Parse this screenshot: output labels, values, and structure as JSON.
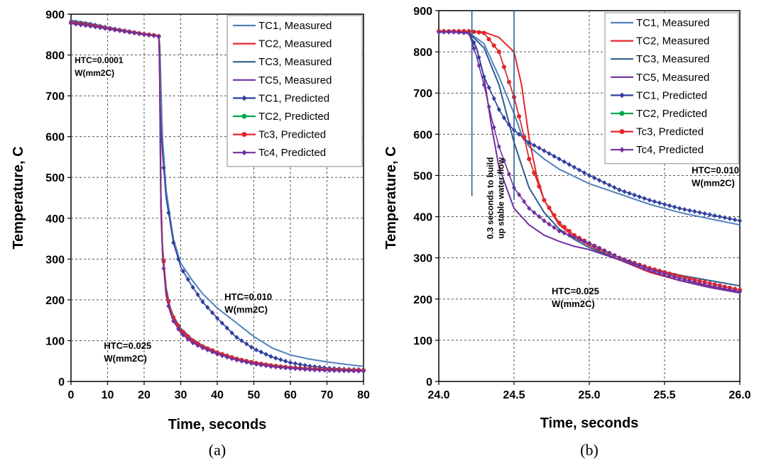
{
  "chart_data": [
    {
      "type": "line",
      "xlabel": "Time, seconds",
      "ylabel": "Temperature, C",
      "xlim": [
        0,
        80
      ],
      "ylim": [
        0,
        900
      ],
      "xticks": [
        "0",
        "10",
        "20",
        "30",
        "40",
        "50",
        "60",
        "70",
        "80"
      ],
      "yticks": [
        "0",
        "100",
        "200",
        "300",
        "400",
        "500",
        "600",
        "700",
        "800",
        "900"
      ],
      "grid": true,
      "legend_position": "top-right",
      "caption": "(a)",
      "series": [
        {
          "name": "TC1, Measured",
          "color": "#4f81bd",
          "marker": "none",
          "x": [
            0,
            5,
            10,
            15,
            20,
            23,
            24,
            24.3,
            24.6,
            25,
            26,
            28,
            30,
            33,
            36,
            40,
            45,
            50,
            55,
            60,
            65,
            70,
            75,
            80
          ],
          "y": [
            885,
            878,
            868,
            860,
            852,
            848,
            846,
            820,
            720,
            600,
            470,
            350,
            290,
            250,
            215,
            180,
            145,
            110,
            82,
            65,
            55,
            48,
            42,
            37
          ]
        },
        {
          "name": "TC2, Measured",
          "color": "#e8242c",
          "marker": "none",
          "x": [
            0,
            5,
            10,
            15,
            20,
            23,
            24,
            24.2,
            24.4,
            24.6,
            25,
            26,
            27,
            28,
            30,
            33,
            36,
            40,
            45,
            50,
            55,
            60,
            65,
            70,
            75,
            80
          ],
          "y": [
            878,
            873,
            865,
            858,
            851,
            848,
            846,
            830,
            650,
            450,
            330,
            220,
            180,
            155,
            125,
            100,
            85,
            70,
            55,
            45,
            38,
            34,
            31,
            29,
            28,
            27
          ]
        },
        {
          "name": "TC3, Measured",
          "color": "#2e5d8e",
          "marker": "none",
          "x": [
            0,
            5,
            10,
            15,
            20,
            23,
            24,
            24.2,
            24.4,
            24.6,
            25,
            26,
            27,
            28,
            30,
            33,
            36,
            40,
            45,
            50,
            55,
            60,
            65,
            70,
            75,
            80
          ],
          "y": [
            880,
            874,
            866,
            859,
            852,
            849,
            847,
            820,
            620,
            440,
            330,
            230,
            185,
            160,
            130,
            105,
            88,
            72,
            57,
            47,
            40,
            35,
            32,
            30,
            29,
            28
          ]
        },
        {
          "name": "TC5, Measured",
          "color": "#7030a0",
          "marker": "none",
          "x": [
            0,
            5,
            10,
            15,
            20,
            23,
            24,
            24.2,
            24.4,
            24.6,
            25,
            26,
            27,
            28,
            30,
            33,
            36,
            40,
            45,
            50,
            55,
            60,
            65,
            70,
            75,
            80
          ],
          "y": [
            878,
            872,
            865,
            858,
            851,
            848,
            846,
            800,
            580,
            420,
            320,
            215,
            175,
            150,
            120,
            97,
            83,
            68,
            54,
            44,
            37,
            33,
            30,
            28,
            27,
            26
          ]
        },
        {
          "name": "TC1, Predicted",
          "color": "#2f3f9e",
          "marker": "diamond",
          "x": [
            0,
            5,
            10,
            15,
            20,
            23,
            24,
            24.3,
            24.6,
            25,
            26,
            28,
            30,
            33,
            36,
            40,
            45,
            50,
            55,
            60,
            65,
            70,
            75,
            80
          ],
          "y": [
            882,
            876,
            867,
            859,
            851,
            848,
            846,
            720,
            620,
            560,
            450,
            340,
            280,
            235,
            195,
            155,
            110,
            80,
            60,
            46,
            38,
            33,
            30,
            29
          ]
        },
        {
          "name": "TC2, Predicted",
          "color": "#00a651",
          "marker": "circle",
          "x": [
            0,
            5,
            10,
            15,
            20,
            23,
            24,
            24.2,
            24.4,
            24.6,
            25,
            26,
            27,
            28,
            30,
            33,
            36,
            40,
            45,
            50,
            55,
            60,
            65,
            70,
            75,
            80
          ],
          "y": [
            879,
            873,
            865,
            858,
            851,
            848,
            846,
            820,
            640,
            450,
            330,
            225,
            182,
            157,
            127,
            102,
            86,
            71,
            56,
            46,
            39,
            34,
            31,
            29,
            28,
            27
          ]
        },
        {
          "name": "Tc3, Predicted",
          "color": "#e8242c",
          "marker": "circle",
          "x": [
            0,
            5,
            10,
            15,
            20,
            23,
            24,
            24.2,
            24.4,
            24.6,
            25,
            26,
            27,
            28,
            30,
            33,
            36,
            40,
            45,
            50,
            55,
            60,
            65,
            70,
            75,
            80
          ],
          "y": [
            879,
            873,
            865,
            858,
            851,
            848,
            846,
            820,
            640,
            450,
            330,
            225,
            182,
            157,
            127,
            102,
            86,
            71,
            56,
            46,
            39,
            34,
            31,
            29,
            28,
            27
          ]
        },
        {
          "name": "Tc4, Predicted",
          "color": "#7030a0",
          "marker": "diamond",
          "x": [
            0,
            5,
            10,
            15,
            20,
            23,
            24,
            24.2,
            24.4,
            24.6,
            25,
            26,
            27,
            28,
            30,
            33,
            36,
            40,
            45,
            50,
            55,
            60,
            65,
            70,
            75,
            80
          ],
          "y": [
            877,
            871,
            864,
            857,
            850,
            847,
            845,
            790,
            560,
            410,
            310,
            210,
            172,
            148,
            119,
            96,
            82,
            67,
            53,
            43,
            36,
            32,
            29,
            27,
            26,
            25
          ]
        }
      ],
      "annotations": [
        {
          "lines": [
            "HTC=0.0001",
            "W(mm2C)"
          ],
          "x": 1,
          "y": 780,
          "size": "small"
        },
        {
          "lines": [
            "HTC=0.010",
            "W(mm2C)"
          ],
          "x": 42,
          "y": 200,
          "size": "normal"
        },
        {
          "lines": [
            "HTC=0.025",
            "W(mm2C)"
          ],
          "x": 9,
          "y": 80,
          "size": "normal"
        }
      ]
    },
    {
      "type": "line",
      "xlabel": "Time, seconds",
      "ylabel": "Temperature, C",
      "xlim": [
        24.0,
        26.0
      ],
      "ylim": [
        0,
        900
      ],
      "xticks": [
        "24.0",
        "24.5",
        "25.0",
        "25.5",
        "26.0"
      ],
      "yticks": [
        "0",
        "100",
        "200",
        "300",
        "400",
        "500",
        "600",
        "700",
        "800",
        "900"
      ],
      "grid": true,
      "legend_position": "top-right",
      "caption": "(b)",
      "series": [
        {
          "name": "TC1, Measured",
          "color": "#4f81bd",
          "marker": "none",
          "x": [
            24.0,
            24.1,
            24.2,
            24.3,
            24.4,
            24.5,
            24.55,
            24.6,
            24.7,
            24.8,
            25.0,
            25.2,
            25.4,
            25.6,
            25.8,
            26.0
          ],
          "y": [
            848,
            848,
            847,
            820,
            740,
            650,
            600,
            570,
            540,
            515,
            480,
            455,
            430,
            410,
            395,
            380
          ]
        },
        {
          "name": "TC2, Measured",
          "color": "#e8242c",
          "marker": "none",
          "x": [
            24.0,
            24.1,
            24.2,
            24.3,
            24.4,
            24.5,
            24.55,
            24.6,
            24.65,
            24.7,
            24.8,
            24.9,
            25.0,
            25.2,
            25.4,
            25.6,
            25.8,
            26.0
          ],
          "y": [
            850,
            850,
            850,
            848,
            835,
            800,
            720,
            590,
            500,
            440,
            380,
            350,
            330,
            295,
            265,
            245,
            230,
            215
          ]
        },
        {
          "name": "TC3, Measured",
          "color": "#2e5d8e",
          "marker": "none",
          "x": [
            24.0,
            24.1,
            24.2,
            24.3,
            24.4,
            24.5,
            24.6,
            24.7,
            24.8,
            24.9,
            25.0,
            25.2,
            25.4,
            25.6,
            25.8,
            26.0
          ],
          "y": [
            848,
            848,
            846,
            810,
            720,
            580,
            470,
            410,
            370,
            345,
            325,
            295,
            275,
            258,
            245,
            232
          ]
        },
        {
          "name": "TC5, Measured",
          "color": "#7030a0",
          "marker": "none",
          "x": [
            24.0,
            24.1,
            24.2,
            24.25,
            24.3,
            24.35,
            24.4,
            24.5,
            24.6,
            24.7,
            24.8,
            24.9,
            25.0,
            25.2,
            25.4,
            25.6,
            25.8,
            26.0
          ],
          "y": [
            848,
            848,
            845,
            810,
            740,
            620,
            520,
            420,
            380,
            355,
            340,
            328,
            320,
            295,
            268,
            245,
            228,
            215
          ]
        },
        {
          "name": "TC1, Predicted",
          "color": "#2f3f9e",
          "marker": "diamond",
          "x": [
            24.0,
            24.1,
            24.2,
            24.25,
            24.3,
            24.35,
            24.4,
            24.45,
            24.5,
            24.6,
            24.7,
            24.8,
            24.9,
            25.0,
            25.2,
            25.4,
            25.6,
            25.8,
            26.0
          ],
          "y": [
            848,
            848,
            848,
            810,
            740,
            700,
            660,
            630,
            610,
            580,
            560,
            540,
            520,
            500,
            465,
            440,
            420,
            405,
            390
          ]
        },
        {
          "name": "TC2, Predicted",
          "color": "#00a651",
          "marker": "circle",
          "x": [
            24.0,
            24.1,
            24.2,
            24.3,
            24.4,
            24.5,
            24.55,
            24.6,
            24.7,
            24.8,
            24.9,
            25.0,
            25.2,
            25.4,
            25.6,
            25.8,
            26.0
          ],
          "y": [
            850,
            850,
            850,
            846,
            800,
            690,
            620,
            540,
            440,
            385,
            355,
            335,
            300,
            275,
            255,
            238,
            222
          ]
        },
        {
          "name": "Tc3, Predicted",
          "color": "#e8242c",
          "marker": "circle",
          "x": [
            24.0,
            24.1,
            24.2,
            24.3,
            24.4,
            24.5,
            24.55,
            24.6,
            24.7,
            24.8,
            24.9,
            25.0,
            25.2,
            25.4,
            25.6,
            25.8,
            26.0
          ],
          "y": [
            850,
            850,
            850,
            846,
            800,
            690,
            620,
            540,
            440,
            385,
            355,
            335,
            300,
            275,
            255,
            238,
            222
          ]
        },
        {
          "name": "Tc4, Predicted",
          "color": "#7030a0",
          "marker": "diamond",
          "x": [
            24.0,
            24.1,
            24.2,
            24.25,
            24.3,
            24.35,
            24.4,
            24.5,
            24.6,
            24.7,
            24.8,
            25.0,
            25.2,
            25.4,
            25.6,
            25.8,
            26.0
          ],
          "y": [
            848,
            848,
            845,
            790,
            720,
            640,
            570,
            470,
            420,
            390,
            365,
            335,
            300,
            272,
            250,
            232,
            218
          ]
        }
      ],
      "annotations": [
        {
          "lines": [
            "HTC=0.010",
            "W(mm2C)"
          ],
          "x": 25.68,
          "y": 505,
          "size": "normal"
        },
        {
          "lines": [
            "HTC=0.025",
            "W(mm2C)"
          ],
          "x": 24.75,
          "y": 212,
          "size": "normal"
        }
      ],
      "rotated_note": {
        "lines": [
          "0.3 seconds to build",
          "up stable water flow"
        ],
        "x": 24.36,
        "y": 445
      },
      "vlines": [
        {
          "x": 24.22,
          "y_from": 450,
          "y_to": 900
        },
        {
          "x": 24.5,
          "y_from": 440,
          "y_to": 900
        }
      ]
    }
  ]
}
